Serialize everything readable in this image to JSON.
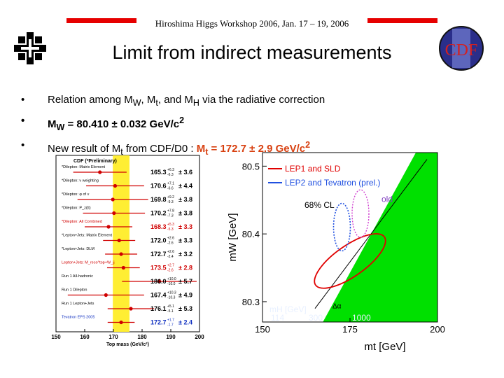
{
  "header": "Hiroshima Higgs Workshop 2006, Jan. 17 – 19, 2006",
  "title": "Limit from indirect measurements",
  "bullets": [
    {
      "a": "Relation among M",
      "s1": "W",
      "b": ", M",
      "s2": "t",
      "c": ", and M",
      "s3": "H",
      "d": " via the radiative correction"
    },
    {
      "a": "M",
      "s1": "W",
      "b": " = 80.410 ± 0.032 GeV/c",
      "s2": "2"
    },
    {
      "a": "New result of M",
      "s1": "t",
      "b": " from CDF/D0 : ",
      "c": "M",
      "s2": "t",
      "d": " = 172.7 ± 2.9 GeV/c",
      "s3": "2"
    }
  ],
  "cdf_logo": "CDF",
  "left_plot": {
    "title": "CDF (*Preliminary)",
    "xlabel": "Top mass (GeV/c²)",
    "xticks": [
      "150",
      "160",
      "170",
      "180",
      "190",
      "200"
    ],
    "rows": [
      {
        "label": "*Dilepton: Matrix Element",
        "val": "165.3",
        "up": "6.3",
        "dn": "6.3",
        "sys": "± 3.6"
      },
      {
        "label": "*Dilepton: ν weighting",
        "val": "170.6",
        "up": "7.1",
        "dn": "6.6",
        "sys": "± 4.4"
      },
      {
        "label": "*Dilepton: φ of ν",
        "val": "169.8",
        "up": "9.2",
        "dn": "9.3",
        "sys": "± 3.8"
      },
      {
        "label": "*Dilepton: P_z(tt)",
        "val": "170.2",
        "up": "7.8",
        "dn": "7.3",
        "sys": "± 3.8"
      },
      {
        "label": "*Dilepton: All Combined",
        "val": "168.3",
        "up": "5.3",
        "dn": "5.3",
        "sys": "± 3.3"
      },
      {
        "label": "*Lepton+Jets: Matrix Element",
        "val": "172.0",
        "up": "2.6",
        "dn": "2.6",
        "sys": "± 3.3"
      },
      {
        "label": "*Lepton+Jets: DLM",
        "val": "172.7",
        "up": "2.6",
        "dn": "2.4",
        "sys": "± 3.2"
      },
      {
        "label": "Lepton+Jets: M_reco^top+W_jj",
        "val": "173.5",
        "up": "2.7",
        "dn": "2.6",
        "sys": "± 2.8"
      },
      {
        "label": "Run 1 All-hadronic",
        "val": "186.0",
        "up": "10.0",
        "dn": "10.0",
        "sys": "± 5.7"
      },
      {
        "label": "Run 1 Dilepton",
        "val": "167.4",
        "up": "10.3",
        "dn": "10.3",
        "sys": "± 4.9"
      },
      {
        "label": "Run 1 Lepton+Jets",
        "val": "176.1",
        "up": "5.1",
        "dn": "5.1",
        "sys": "± 5.3"
      },
      {
        "label": "Tevatron EPS 2005",
        "val": "172.7",
        "up": "1.7",
        "dn": "1.7",
        "sys": "± 2.4"
      }
    ]
  },
  "right_plot": {
    "ylabel": "mW [GeV]",
    "xlabel": "mt [GeV]",
    "yticks": [
      "80.5",
      "80.4",
      "80.3"
    ],
    "xticks": [
      "150",
      "175",
      "200"
    ],
    "legend": [
      "LEP1 and SLD",
      "LEP2 and Tevatron (prel.)"
    ],
    "cl": "68% CL",
    "old": "old",
    "mh_label": "mH [GeV]",
    "mh_values": [
      "114",
      "300",
      "1000"
    ],
    "delta_alpha": "Δα"
  }
}
